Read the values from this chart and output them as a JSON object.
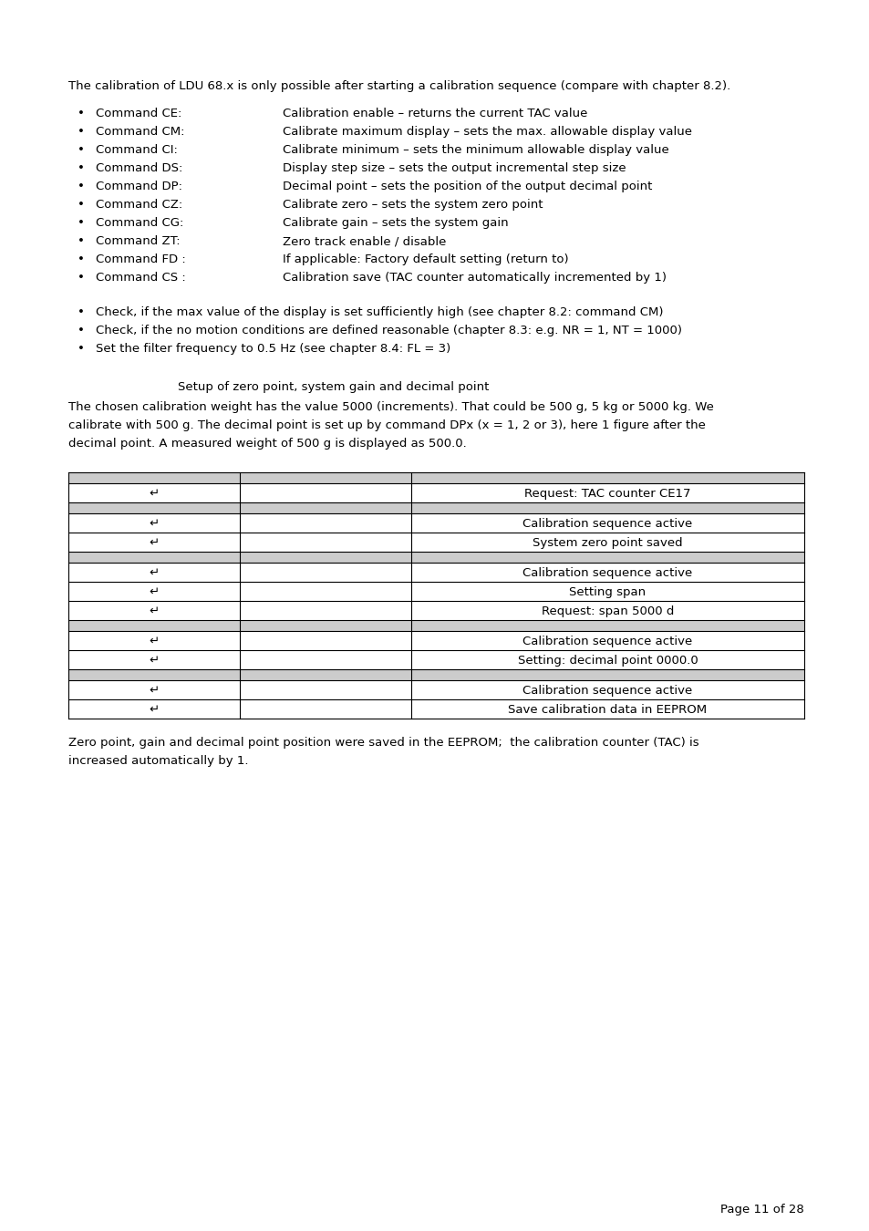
{
  "bg_color": "#ffffff",
  "text_color": "#000000",
  "intro_text": "The calibration of LDU 68.x is only possible after starting a calibration sequence (compare with chapter 8.2).",
  "bullet_items": [
    [
      "Command CE:",
      "Calibration enable – returns the current TAC value"
    ],
    [
      "Command CM:",
      "Calibrate maximum display – sets the max. allowable display value"
    ],
    [
      "Command CI:",
      "Calibrate minimum – sets the minimum allowable display value"
    ],
    [
      "Command DS:",
      "Display step size – sets the output incremental step size"
    ],
    [
      "Command DP:",
      "Decimal point – sets the position of the output decimal point"
    ],
    [
      "Command CZ:",
      "Calibrate zero – sets the system zero point"
    ],
    [
      "Command CG:",
      "Calibrate gain – sets the system gain"
    ],
    [
      "Command ZT:",
      "Zero track enable / disable"
    ],
    [
      "Command FD :",
      "If applicable: Factory default setting (return to)"
    ],
    [
      "Command CS :",
      "Calibration save (TAC counter automatically incremented by 1)"
    ]
  ],
  "bullet_items2": [
    "Check, if the max value of the display is set sufficiently high (see chapter 8.2: command CM)",
    "Check, if the no motion conditions are defined reasonable (chapter 8.3: e.g. NR = 1, NT = 1000)",
    "Set the filter frequency to 0.5 Hz (see chapter 8.4: FL = 3)"
  ],
  "subtitle": "Setup of zero point, system gain and decimal point",
  "para2_lines": [
    "The chosen calibration weight has the value 5000 (increments). That could be 500 g, 5 kg or 5000 kg. We",
    "calibrate with 500 g. The decimal point is set up by command DPx (x = 1, 2 or 3), here 1 figure after the",
    "decimal point. A measured weight of 500 g is displayed as 500.0."
  ],
  "table_rows": [
    {
      "col1": "",
      "col2": "",
      "col3": "",
      "shaded": true
    },
    {
      "col1": "↵",
      "col2": "",
      "col3": "Request: TAC counter CE17",
      "shaded": false
    },
    {
      "col1": "",
      "col2": "",
      "col3": "",
      "shaded": true
    },
    {
      "col1": "↵",
      "col2": "",
      "col3": "Calibration sequence active",
      "shaded": false
    },
    {
      "col1": "↵",
      "col2": "",
      "col3": "System zero point saved",
      "shaded": false
    },
    {
      "col1": "",
      "col2": "",
      "col3": "",
      "shaded": true
    },
    {
      "col1": "↵",
      "col2": "",
      "col3": "Calibration sequence active",
      "shaded": false
    },
    {
      "col1": "↵",
      "col2": "",
      "col3": "Setting span",
      "shaded": false
    },
    {
      "col1": "↵",
      "col2": "",
      "col3": "Request: span 5000 d",
      "shaded": false
    },
    {
      "col1": "",
      "col2": "",
      "col3": "",
      "shaded": true
    },
    {
      "col1": "↵",
      "col2": "",
      "col3": "Calibration sequence active",
      "shaded": false
    },
    {
      "col1": "↵",
      "col2": "",
      "col3": "Setting: decimal point 0000.0",
      "shaded": false
    },
    {
      "col1": "",
      "col2": "",
      "col3": "",
      "shaded": true
    },
    {
      "col1": "↵",
      "col2": "",
      "col3": "Calibration sequence active",
      "shaded": false
    },
    {
      "col1": "↵",
      "col2": "",
      "col3": "Save calibration data in EEPROM",
      "shaded": false
    }
  ],
  "footer_lines": [
    "Zero point, gain and decimal point position were saved in the EEPROM;  the calibration counter (TAC) is",
    "increased automatically by 1."
  ],
  "page_num": "Page 11 of 28",
  "shaded_color": "#cccccc",
  "table_border_color": "#000000",
  "font_size": 9.5,
  "font_family": "DejaVu Sans"
}
